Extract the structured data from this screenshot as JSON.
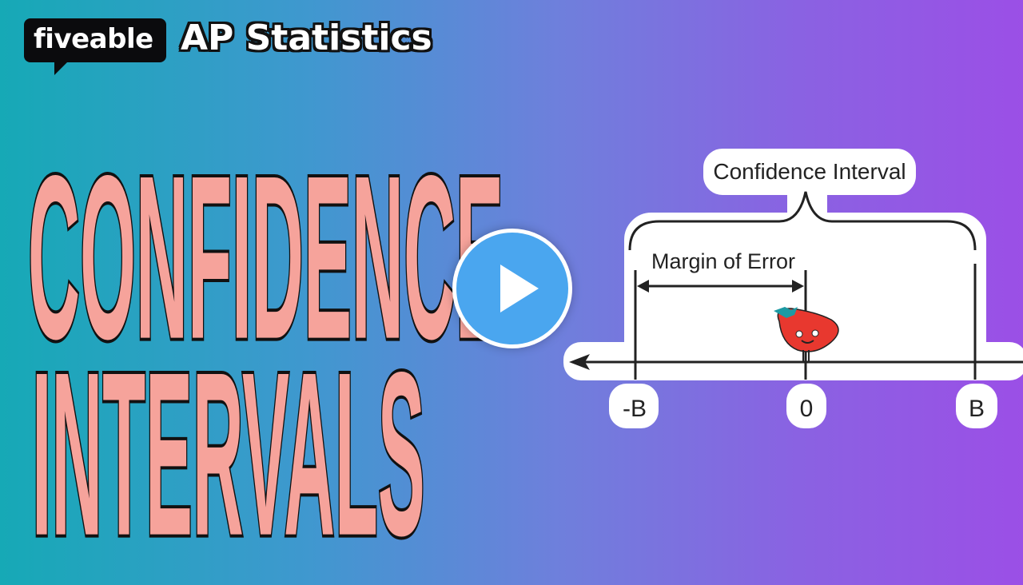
{
  "brand": {
    "logo_text": "fiveable",
    "course": "AP Statistics"
  },
  "title": {
    "line1": "CONFIDENCE",
    "line2": "INTERVALS"
  },
  "diagram": {
    "interval_label": "Confidence Interval",
    "margin_label": "Margin of Error",
    "ticks": [
      "-B",
      "0",
      "B"
    ],
    "mascot": "strawberry-mascot-icon"
  },
  "video": {
    "play_icon": "play-icon"
  },
  "colors": {
    "title": "#f6a39b",
    "play": "#4aa6ef",
    "bg_left": "#16a9b6",
    "bg_right": "#9b4fe6"
  }
}
